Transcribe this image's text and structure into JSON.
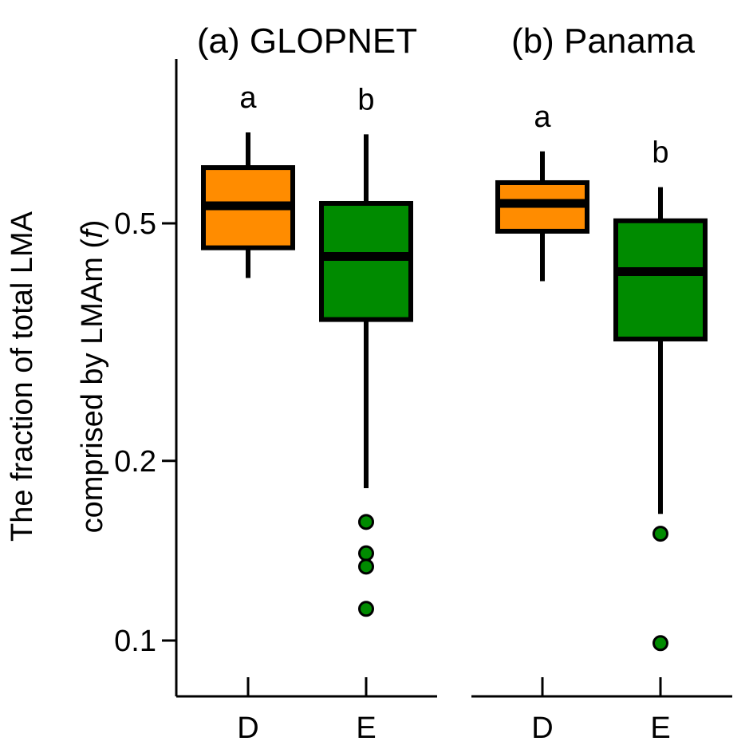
{
  "chart_data": {
    "type": "box",
    "ylabel_line1": "The fraction of total LMA",
    "ylabel_line2_prefix": "comprised by LMAm (",
    "ylabel_symbol": "f",
    "ylabel_line2_suffix": ")",
    "yscale": "log",
    "ylim": [
      0.082,
      0.8
    ],
    "yticks": [
      {
        "value": 0.1,
        "label": "0.1"
      },
      {
        "value": 0.2,
        "label": "0.2"
      },
      {
        "value": 0.5,
        "label": "0.5"
      }
    ],
    "colors": {
      "D": "#ff8c00",
      "E": "#008b00",
      "line": "#000000"
    },
    "panels": [
      {
        "title": "(a) GLOPNET",
        "groups": [
          {
            "category": "D",
            "letter": "a",
            "whisker_low": 0.405,
            "q1": 0.455,
            "median": 0.535,
            "q3": 0.62,
            "whisker_high": 0.71,
            "outliers": []
          },
          {
            "category": "E",
            "letter": "b",
            "whisker_low": 0.18,
            "q1": 0.345,
            "median": 0.44,
            "q3": 0.54,
            "whisker_high": 0.705,
            "outliers": [
              0.158,
              0.14,
              0.133,
              0.113
            ]
          }
        ]
      },
      {
        "title": "(b) Panama",
        "groups": [
          {
            "category": "D",
            "letter": "a",
            "whisker_low": 0.4,
            "q1": 0.485,
            "median": 0.54,
            "q3": 0.585,
            "whisker_high": 0.66,
            "outliers": []
          },
          {
            "category": "E",
            "letter": "b",
            "whisker_low": 0.163,
            "q1": 0.32,
            "median": 0.415,
            "q3": 0.505,
            "whisker_high": 0.575,
            "outliers": [
              0.151,
              0.099
            ]
          }
        ]
      }
    ]
  }
}
